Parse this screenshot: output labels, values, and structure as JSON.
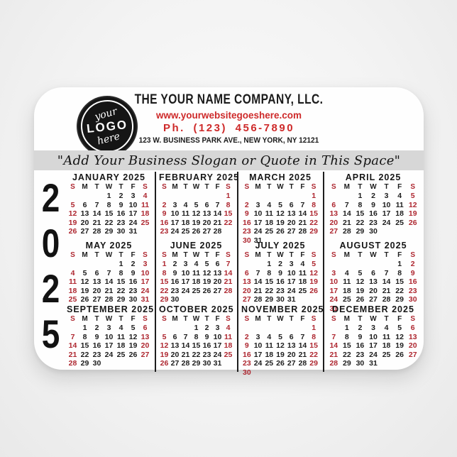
{
  "header": {
    "company_name": "THE YOUR NAME COMPANY, LLC.",
    "website": "www.yourwebsitegoeshere.com",
    "phone": "Ph. (123) 456-7890",
    "address": "123 W. BUSINESS PARK AVE., NEW YORK, NY 12121",
    "accent_color": "#ce2a2a"
  },
  "logo": {
    "line1": "your",
    "line2": "LOGO",
    "line3": "here"
  },
  "slogan": "\"Add Your Business Slogan or Quote in This Space\"",
  "year_digits": [
    "2",
    "0",
    "2",
    "5"
  ],
  "calendar": {
    "dow_labels": [
      "S",
      "M",
      "T",
      "W",
      "T",
      "F",
      "S"
    ],
    "weekday_color": "#1c1c1c",
    "weekend_color": "#ae2730",
    "months": [
      {
        "name": "JANUARY 2025",
        "first_dow": 3,
        "days": 31
      },
      {
        "name": "FEBRUARY 2025",
        "first_dow": 6,
        "days": 28
      },
      {
        "name": "MARCH 2025",
        "first_dow": 6,
        "days": 31
      },
      {
        "name": "APRIL 2025",
        "first_dow": 2,
        "days": 30
      },
      {
        "name": "MAY 2025",
        "first_dow": 4,
        "days": 31
      },
      {
        "name": "JUNE 2025",
        "first_dow": 0,
        "days": 30
      },
      {
        "name": "JULY 2025",
        "first_dow": 2,
        "days": 31
      },
      {
        "name": "AUGUST 2025",
        "first_dow": 5,
        "days": 31
      },
      {
        "name": "SEPTEMBER 2025",
        "first_dow": 1,
        "days": 30
      },
      {
        "name": "OCTOBER 2025",
        "first_dow": 3,
        "days": 31
      },
      {
        "name": "NOVEMBER 2025",
        "first_dow": 6,
        "days": 30
      },
      {
        "name": "DECEMBER 2025",
        "first_dow": 1,
        "days": 31
      }
    ]
  }
}
